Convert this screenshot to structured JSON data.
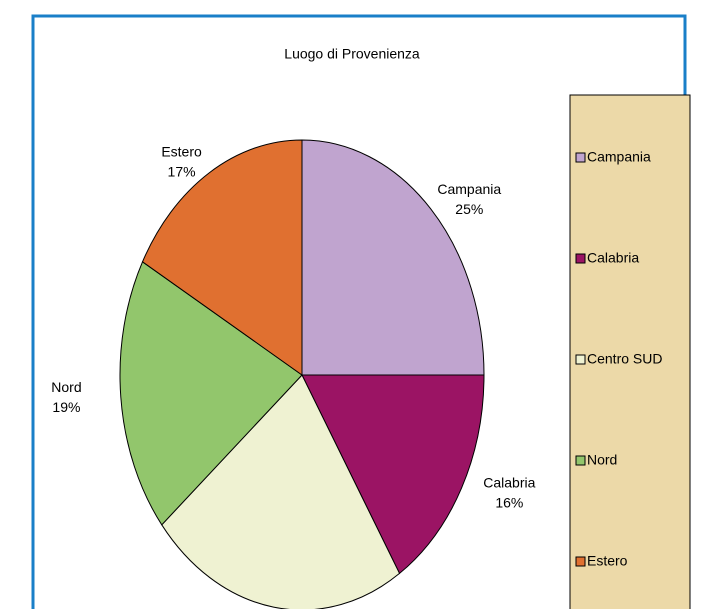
{
  "chart_data": {
    "type": "pie",
    "title": "Luogo di Provenienza",
    "categories": [
      "Campania",
      "Calabria",
      "Centro SUD",
      "Nord",
      "Estero"
    ],
    "values": [
      25,
      16,
      23,
      19,
      17
    ],
    "value_labels": [
      "25%",
      "16%",
      null,
      "19%",
      "17%"
    ],
    "colors": [
      "#c0a4cf",
      "#9b1464",
      "#eff2d2",
      "#92c66c",
      "#e07030"
    ],
    "legend": "right"
  }
}
